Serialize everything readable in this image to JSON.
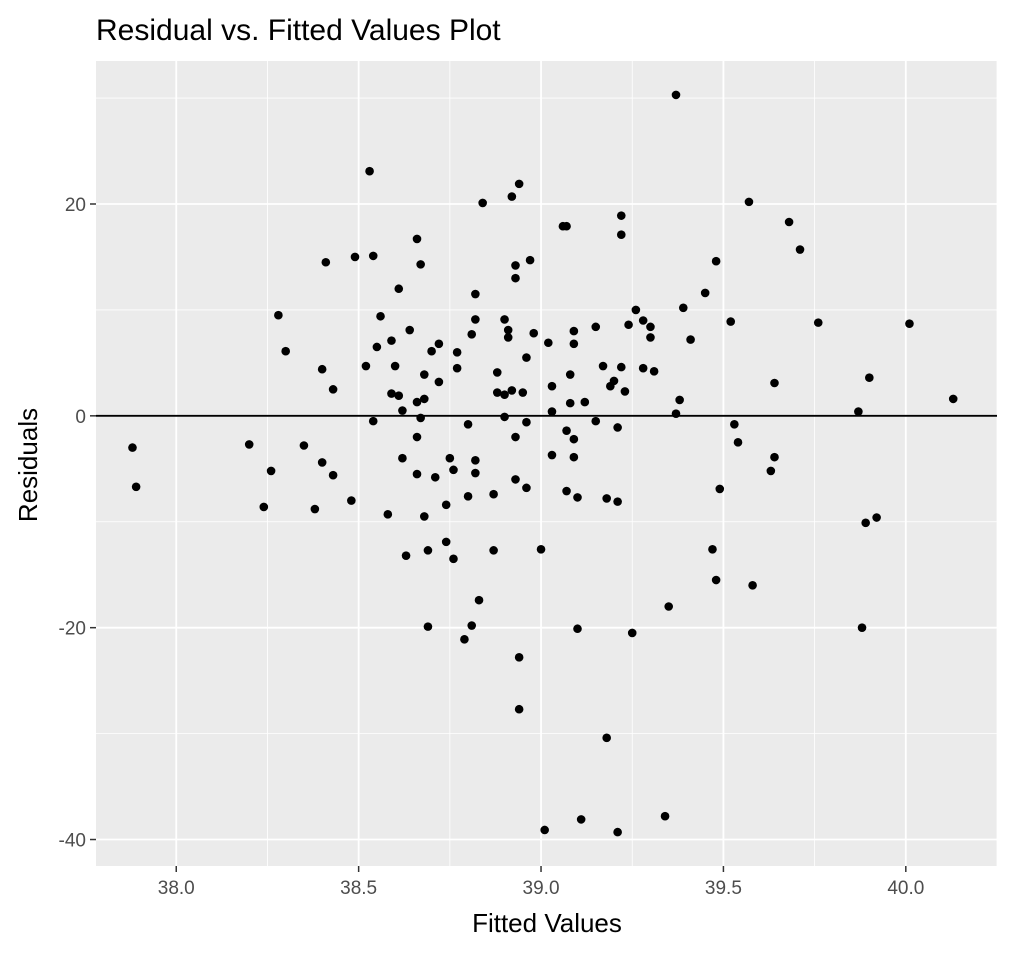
{
  "chart_data": {
    "type": "scatter",
    "title": "Residual vs. Fitted Values Plot",
    "xlabel": "Fitted Values",
    "ylabel": "Residuals",
    "xlim": [
      37.78,
      40.25
    ],
    "ylim": [
      -42.5,
      33.5
    ],
    "x_ticks": [
      38.0,
      38.5,
      39.0,
      39.5,
      40.0
    ],
    "x_tick_labels": [
      "38.0",
      "38.5",
      "39.0",
      "39.5",
      "40.0"
    ],
    "y_ticks": [
      -40,
      -20,
      0,
      20
    ],
    "y_tick_labels": [
      "-40",
      "-20",
      "0",
      "20"
    ],
    "reference_line_y": 0,
    "grid": true,
    "colors": {
      "panel": "#ebebeb",
      "grid": "#ffffff",
      "point": "#000000",
      "ref_line": "#000000"
    },
    "points": [
      [
        37.88,
        -3.0
      ],
      [
        37.89,
        -6.7
      ],
      [
        38.2,
        -2.7
      ],
      [
        38.24,
        -8.6
      ],
      [
        38.26,
        -5.2
      ],
      [
        38.28,
        9.5
      ],
      [
        38.3,
        6.1
      ],
      [
        38.35,
        -2.8
      ],
      [
        38.38,
        -8.8
      ],
      [
        38.4,
        4.4
      ],
      [
        38.4,
        -4.4
      ],
      [
        38.41,
        14.5
      ],
      [
        38.43,
        2.5
      ],
      [
        38.43,
        -5.6
      ],
      [
        38.48,
        -8.0
      ],
      [
        38.49,
        15.0
      ],
      [
        38.52,
        4.7
      ],
      [
        38.53,
        23.1
      ],
      [
        38.54,
        -0.5
      ],
      [
        38.54,
        15.1
      ],
      [
        38.55,
        6.5
      ],
      [
        38.56,
        9.4
      ],
      [
        38.58,
        -9.3
      ],
      [
        38.59,
        7.1
      ],
      [
        38.59,
        2.1
      ],
      [
        38.6,
        4.7
      ],
      [
        38.61,
        1.9
      ],
      [
        38.61,
        12.0
      ],
      [
        38.62,
        0.5
      ],
      [
        38.62,
        -4.0
      ],
      [
        38.63,
        -13.2
      ],
      [
        38.64,
        8.1
      ],
      [
        38.66,
        1.3
      ],
      [
        38.66,
        -5.5
      ],
      [
        38.66,
        -2.0
      ],
      [
        38.66,
        16.7
      ],
      [
        38.67,
        14.3
      ],
      [
        38.67,
        -0.2
      ],
      [
        38.68,
        -9.5
      ],
      [
        38.68,
        1.6
      ],
      [
        38.68,
        3.9
      ],
      [
        38.69,
        -12.7
      ],
      [
        38.69,
        -19.9
      ],
      [
        38.7,
        6.1
      ],
      [
        38.71,
        -5.8
      ],
      [
        38.72,
        3.2
      ],
      [
        38.72,
        6.8
      ],
      [
        38.74,
        -8.4
      ],
      [
        38.74,
        -11.9
      ],
      [
        38.75,
        -4.0
      ],
      [
        38.76,
        -5.1
      ],
      [
        38.76,
        -13.5
      ],
      [
        38.77,
        6.0
      ],
      [
        38.77,
        4.5
      ],
      [
        38.79,
        -21.1
      ],
      [
        38.8,
        -7.6
      ],
      [
        38.8,
        -0.8
      ],
      [
        38.81,
        -19.8
      ],
      [
        38.81,
        7.7
      ],
      [
        38.82,
        11.5
      ],
      [
        38.82,
        9.1
      ],
      [
        38.82,
        -4.2
      ],
      [
        38.82,
        -5.4
      ],
      [
        38.83,
        -17.4
      ],
      [
        38.84,
        20.1
      ],
      [
        38.87,
        -7.4
      ],
      [
        38.87,
        -12.7
      ],
      [
        38.88,
        2.2
      ],
      [
        38.88,
        4.1
      ],
      [
        38.9,
        2.0
      ],
      [
        38.9,
        -0.1
      ],
      [
        38.9,
        9.1
      ],
      [
        38.91,
        8.1
      ],
      [
        38.91,
        7.4
      ],
      [
        38.92,
        20.7
      ],
      [
        38.92,
        2.4
      ],
      [
        38.93,
        13.0
      ],
      [
        38.93,
        14.2
      ],
      [
        38.93,
        -2.0
      ],
      [
        38.93,
        -6.0
      ],
      [
        38.94,
        21.9
      ],
      [
        38.94,
        -27.7
      ],
      [
        38.94,
        -22.8
      ],
      [
        38.95,
        2.2
      ],
      [
        38.96,
        5.5
      ],
      [
        38.96,
        -0.6
      ],
      [
        38.96,
        -6.8
      ],
      [
        38.97,
        14.7
      ],
      [
        38.98,
        7.8
      ],
      [
        39.0,
        -12.6
      ],
      [
        39.01,
        -39.1
      ],
      [
        39.02,
        6.9
      ],
      [
        39.03,
        2.8
      ],
      [
        39.03,
        0.4
      ],
      [
        39.03,
        -3.7
      ],
      [
        39.06,
        17.9
      ],
      [
        39.07,
        17.9
      ],
      [
        39.07,
        -1.4
      ],
      [
        39.07,
        -7.1
      ],
      [
        39.08,
        1.2
      ],
      [
        39.08,
        3.9
      ],
      [
        39.09,
        -2.2
      ],
      [
        39.09,
        -3.9
      ],
      [
        39.09,
        6.8
      ],
      [
        39.09,
        8.0
      ],
      [
        39.1,
        -7.7
      ],
      [
        39.1,
        -20.1
      ],
      [
        39.11,
        -38.1
      ],
      [
        39.12,
        1.3
      ],
      [
        39.15,
        8.4
      ],
      [
        39.15,
        -0.5
      ],
      [
        39.17,
        4.7
      ],
      [
        39.18,
        -7.8
      ],
      [
        39.18,
        -30.4
      ],
      [
        39.19,
        2.8
      ],
      [
        39.2,
        3.3
      ],
      [
        39.21,
        -1.1
      ],
      [
        39.21,
        -8.1
      ],
      [
        39.21,
        -39.3
      ],
      [
        39.22,
        18.9
      ],
      [
        39.22,
        17.1
      ],
      [
        39.22,
        4.6
      ],
      [
        39.23,
        2.3
      ],
      [
        39.24,
        8.6
      ],
      [
        39.25,
        -20.5
      ],
      [
        39.26,
        10.0
      ],
      [
        39.28,
        4.5
      ],
      [
        39.28,
        9.0
      ],
      [
        39.3,
        7.4
      ],
      [
        39.3,
        8.4
      ],
      [
        39.31,
        4.2
      ],
      [
        39.34,
        -37.8
      ],
      [
        39.35,
        -18.0
      ],
      [
        39.37,
        30.3
      ],
      [
        39.37,
        0.2
      ],
      [
        39.38,
        1.5
      ],
      [
        39.39,
        10.2
      ],
      [
        39.41,
        7.2
      ],
      [
        39.45,
        11.6
      ],
      [
        39.47,
        -12.6
      ],
      [
        39.48,
        -15.5
      ],
      [
        39.48,
        14.6
      ],
      [
        39.49,
        -6.9
      ],
      [
        39.52,
        8.9
      ],
      [
        39.53,
        -0.8
      ],
      [
        39.54,
        -2.5
      ],
      [
        39.57,
        20.2
      ],
      [
        39.58,
        -16.0
      ],
      [
        39.63,
        -5.2
      ],
      [
        39.64,
        3.1
      ],
      [
        39.64,
        -3.9
      ],
      [
        39.68,
        18.3
      ],
      [
        39.71,
        15.7
      ],
      [
        39.76,
        8.8
      ],
      [
        39.87,
        0.4
      ],
      [
        39.88,
        -20.0
      ],
      [
        39.89,
        -10.1
      ],
      [
        39.9,
        3.6
      ],
      [
        39.92,
        -9.6
      ],
      [
        40.01,
        8.7
      ],
      [
        40.13,
        1.6
      ]
    ]
  }
}
